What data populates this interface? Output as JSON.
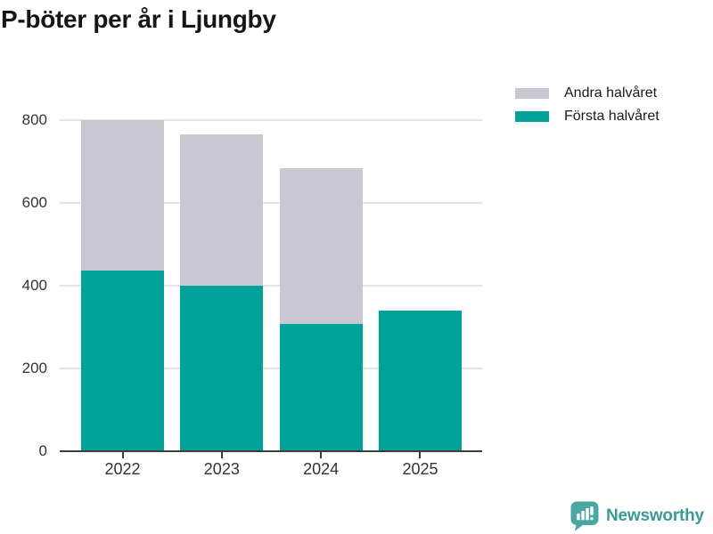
{
  "title": "P-böter per år i Ljungby",
  "legend": {
    "items": [
      {
        "label": "Andra halvåret",
        "swatch_color": "#c9c7d1"
      },
      {
        "label": "Första halvåret",
        "swatch_color": "#00a29a"
      }
    ]
  },
  "chart_data": {
    "type": "bar",
    "stacked": true,
    "title": "P-böter per år i Ljungby",
    "categories": [
      "2022",
      "2023",
      "2024",
      "2025"
    ],
    "series": [
      {
        "name": "Första halvåret",
        "color": "#00a29a",
        "values": [
          437,
          400,
          307,
          340
        ]
      },
      {
        "name": "Andra halvåret",
        "color": "#c9c7d1",
        "values": [
          363,
          366,
          376,
          0
        ]
      }
    ],
    "totals": [
      800,
      766,
      683,
      340
    ],
    "xlabel": "",
    "ylabel": "",
    "ylim": [
      0,
      800
    ],
    "yticks": [
      0,
      200,
      400,
      600,
      800
    ],
    "grid": true,
    "legend_position": "top-right",
    "axis_color": "#3d3d3d",
    "gridline_color": "#e4e4e4",
    "background_color": "#ffffff"
  },
  "branding": {
    "name": "Newsworthy",
    "icon": "speech-bubble-bar-chart-icon",
    "icon_color": "#4ba7a2",
    "text_color": "#3a9b96"
  }
}
